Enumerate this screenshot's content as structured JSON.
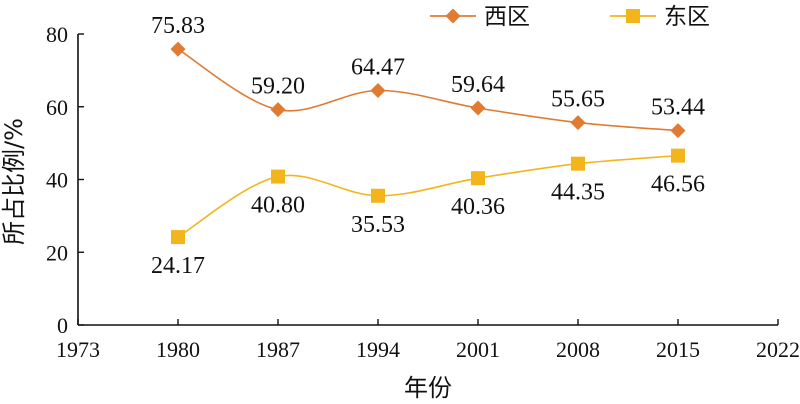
{
  "chart_data": {
    "type": "line",
    "title": "",
    "xlabel": "年份",
    "ylabel": "所占比例/%",
    "xlim": [
      1973,
      2022
    ],
    "ylim": [
      0,
      80
    ],
    "xticks": [
      "1973",
      "1980",
      "1987",
      "1994",
      "2001",
      "2008",
      "2015",
      "2022"
    ],
    "yticks": [
      "0",
      "20",
      "40",
      "60",
      "80"
    ],
    "x": [
      1980,
      1987,
      1994,
      2001,
      2008,
      2015
    ],
    "grid": false,
    "legend_position": "top-right",
    "series": [
      {
        "name": "西区",
        "color": "#E07B31",
        "marker": "diamond",
        "values": [
          75.83,
          59.2,
          64.47,
          59.64,
          55.65,
          53.44
        ],
        "labels": [
          "75.83",
          "59.20",
          "64.47",
          "59.64",
          "55.65",
          "53.44"
        ]
      },
      {
        "name": "东区",
        "color": "#F2B51B",
        "marker": "square",
        "values": [
          24.17,
          40.8,
          35.53,
          40.36,
          44.35,
          46.56
        ],
        "labels": [
          "24.17",
          "40.80",
          "35.53",
          "40.36",
          "44.35",
          "46.56"
        ]
      }
    ]
  }
}
